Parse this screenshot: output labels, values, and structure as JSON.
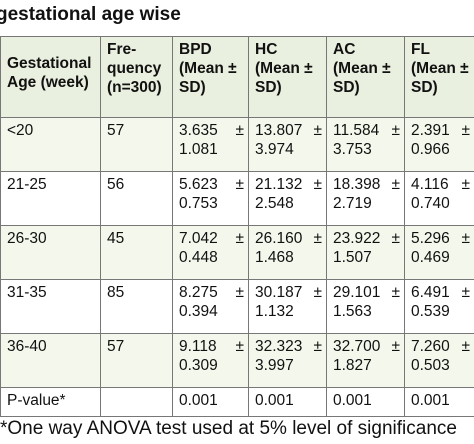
{
  "title": "gestational age wise",
  "columns": [
    [
      "Gestational",
      "Age (week)"
    ],
    [
      "Fre-",
      "quency",
      "(n=300)"
    ],
    [
      "BPD",
      "(Mean ±",
      "SD)"
    ],
    [
      "HC",
      "(Mean ±",
      "SD)"
    ],
    [
      "AC",
      "(Mean ±",
      "SD)"
    ],
    [
      "FL",
      "(Mean ±",
      "SD)"
    ]
  ],
  "rows": [
    {
      "age": "<20",
      "freq": "57",
      "cells": [
        {
          "mean": "3.635",
          "pm": "±",
          "sd": "1.081"
        },
        {
          "mean": "13.807",
          "pm": "±",
          "sd": "3.974"
        },
        {
          "mean": "11.584",
          "pm": "±",
          "sd": "3.753"
        },
        {
          "mean": "2.391",
          "pm": "±",
          "sd": "0.966"
        }
      ]
    },
    {
      "age": "21-25",
      "freq": "56",
      "cells": [
        {
          "mean": "5.623",
          "pm": "±",
          "sd": "0.753"
        },
        {
          "mean": "21.132",
          "pm": "±",
          "sd": "2.548"
        },
        {
          "mean": "18.398",
          "pm": "±",
          "sd": "2.719"
        },
        {
          "mean": "4.116",
          "pm": "±",
          "sd": "0.740"
        }
      ]
    },
    {
      "age": "26-30",
      "freq": "45",
      "cells": [
        {
          "mean": "7.042",
          "pm": "±",
          "sd": "0.448"
        },
        {
          "mean": "26.160",
          "pm": "±",
          "sd": "1.468"
        },
        {
          "mean": "23.922",
          "pm": "±",
          "sd": "1.507"
        },
        {
          "mean": "5.296",
          "pm": "±",
          "sd": "0.469"
        }
      ]
    },
    {
      "age": "31-35",
      "freq": "85",
      "cells": [
        {
          "mean": "8.275",
          "pm": "±",
          "sd": "0.394"
        },
        {
          "mean": "30.187",
          "pm": "±",
          "sd": "1.132"
        },
        {
          "mean": "29.101",
          "pm": "±",
          "sd": "1.563"
        },
        {
          "mean": "6.491",
          "pm": "±",
          "sd": "0.539"
        }
      ]
    },
    {
      "age": "36-40",
      "freq": "57",
      "cells": [
        {
          "mean": "9.118",
          "pm": "±",
          "sd": "0.309"
        },
        {
          "mean": "32.323",
          "pm": "±",
          "sd": "3.997"
        },
        {
          "mean": "32.700",
          "pm": "±",
          "sd": "1.827"
        },
        {
          "mean": "7.260",
          "pm": "±",
          "sd": "0.503"
        }
      ]
    }
  ],
  "pvalue": {
    "label": "P-value*",
    "freq": "",
    "values": [
      "0.001",
      "0.001",
      "0.001",
      "0.001"
    ]
  },
  "footnote": "*One way ANOVA test used at 5% level of significance",
  "colors": {
    "header_bg": "#eaf0df",
    "band_bg": "#f4f8ec",
    "border": "#777777"
  }
}
